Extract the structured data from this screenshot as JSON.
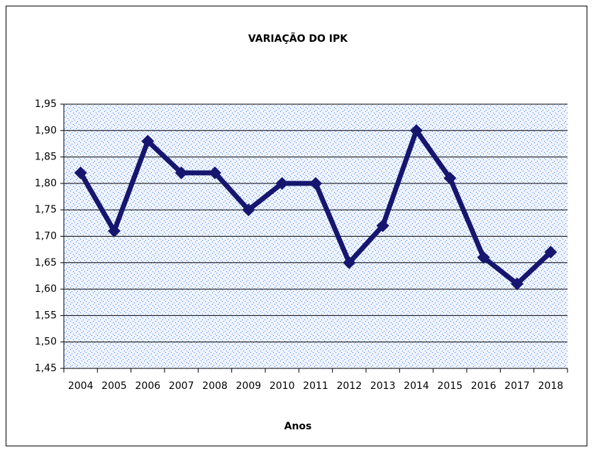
{
  "chart_data": {
    "type": "line",
    "title": "VARIAÇÃO DO IPK",
    "x_label": "Anos",
    "categories": [
      "2004",
      "2005",
      "2006",
      "2007",
      "2008",
      "2009",
      "2010",
      "2011",
      "2012",
      "2013",
      "2014",
      "2015",
      "2016",
      "2017",
      "2018"
    ],
    "values": [
      1.82,
      1.71,
      1.88,
      1.82,
      1.82,
      1.75,
      1.8,
      1.8,
      1.65,
      1.72,
      1.9,
      1.81,
      1.66,
      1.61,
      1.67
    ],
    "color": "#16166e",
    "ylim": [
      1.45,
      1.95
    ],
    "yticks": [
      {
        "value": 1.45,
        "label": "1,45"
      },
      {
        "value": 1.5,
        "label": "1,50"
      },
      {
        "value": 1.55,
        "label": "1,55"
      },
      {
        "value": 1.6,
        "label": "1,60"
      },
      {
        "value": 1.65,
        "label": "1,65"
      },
      {
        "value": 1.7,
        "label": "1,70"
      },
      {
        "value": 1.75,
        "label": "1,75"
      },
      {
        "value": 1.8,
        "label": "1,80"
      },
      {
        "value": 1.85,
        "label": "1,85"
      },
      {
        "value": 1.9,
        "label": "1,90"
      },
      {
        "value": 1.95,
        "label": "1,95"
      }
    ],
    "grid": true
  }
}
